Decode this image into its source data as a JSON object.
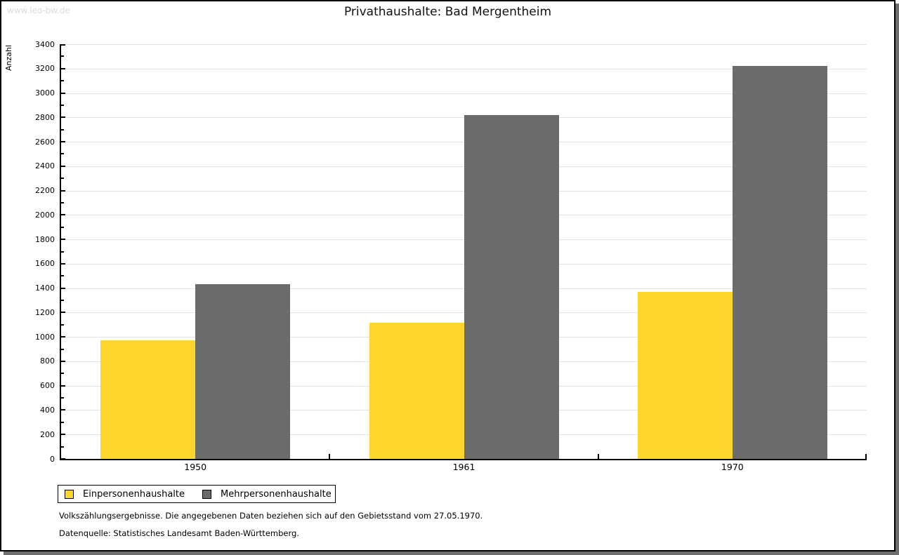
{
  "watermark": "www.leo-bw.de",
  "chart_data": {
    "type": "bar",
    "title": "Privathaushalte: Bad Mergentheim",
    "ylabel": "Anzahl",
    "xlabel": "",
    "categories": [
      "1950",
      "1961",
      "1970"
    ],
    "series": [
      {
        "name": "Einpersonenhaushalte",
        "color": "#FCD62C",
        "values": [
          970,
          1115,
          1370
        ]
      },
      {
        "name": "Mehrpersonenhaushalte",
        "color": "#6B6B6B",
        "values": [
          1430,
          2820,
          3220
        ]
      }
    ],
    "ylim": [
      0,
      3400
    ],
    "ytick_step": 200,
    "yminor_step": 100,
    "grid": true,
    "gridline_color": "#e3e3e3",
    "legend_position": "bottom-left"
  },
  "notes": [
    "Volkszählungsergebnisse. Die angegebenen Daten beziehen sich auf den Gebietsstand vom 27.05.1970.",
    "Datenquelle: Statistisches Landesamt Baden-Württemberg."
  ]
}
